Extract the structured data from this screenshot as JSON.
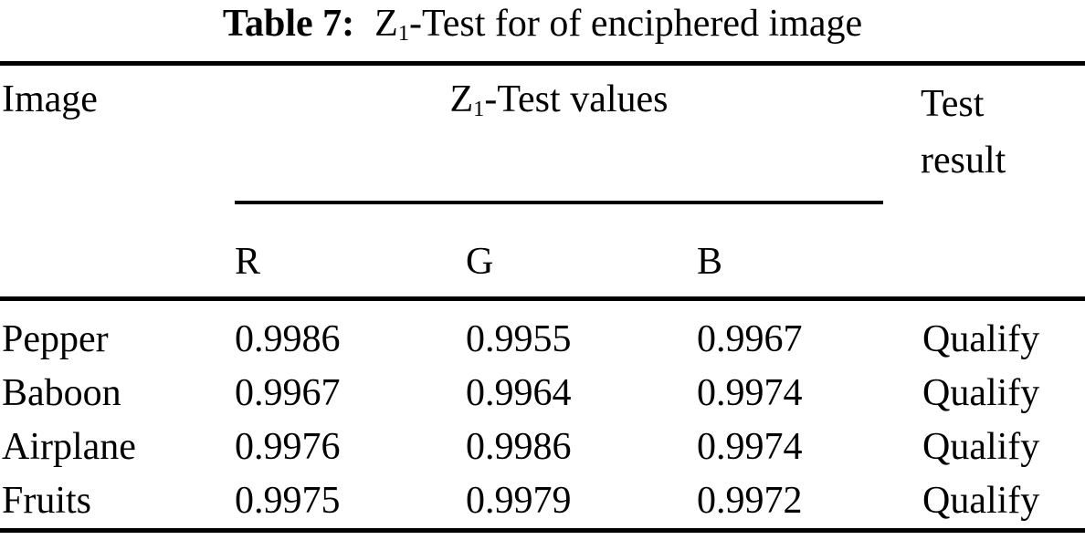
{
  "caption": {
    "label": "Table 7:",
    "title_z": "Z",
    "title_sub": "1",
    "title_rest": "-Test for of enciphered image"
  },
  "header": {
    "image": "Image",
    "values_z": "Z",
    "values_sub": "1",
    "values_rest": "-Test values",
    "result": "Test result",
    "channels": [
      "R",
      "G",
      "B"
    ]
  },
  "rows": [
    {
      "image": "Pepper",
      "r": "0.9986",
      "g": "0.9955",
      "b": "0.9967",
      "result": "Qualify"
    },
    {
      "image": "Baboon",
      "r": "0.9967",
      "g": "0.9964",
      "b": "0.9974",
      "result": "Qualify"
    },
    {
      "image": "Airplane",
      "r": "0.9976",
      "g": "0.9986",
      "b": "0.9974",
      "result": "Qualify"
    },
    {
      "image": "Fruits",
      "r": "0.9975",
      "g": "0.9979",
      "b": "0.9972",
      "result": "Qualify"
    }
  ],
  "chart_data": {
    "type": "table",
    "title": "Table 7: Z1-Test for of enciphered image",
    "columns": [
      "Image",
      "R",
      "G",
      "B",
      "Test result"
    ],
    "rows": [
      [
        "Pepper",
        0.9986,
        0.9955,
        0.9967,
        "Qualify"
      ],
      [
        "Baboon",
        0.9967,
        0.9964,
        0.9974,
        "Qualify"
      ],
      [
        "Airplane",
        0.9976,
        0.9986,
        0.9974,
        "Qualify"
      ],
      [
        "Fruits",
        0.9975,
        0.9979,
        0.9972,
        "Qualify"
      ]
    ]
  },
  "colors": {
    "text": "#000000",
    "background": "#ffffff",
    "rule": "#000000"
  }
}
